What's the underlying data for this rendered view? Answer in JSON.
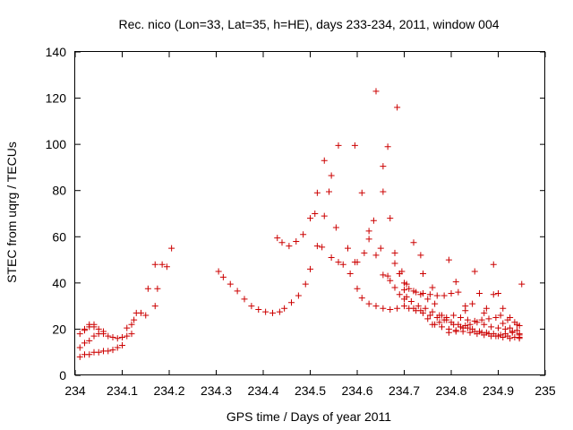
{
  "chart_data": {
    "type": "scatter",
    "title": "Rec. nico (Lon=33, Lat=35, h=HE), days 233-234, 2011, window 004",
    "xlabel": "GPS time / Days of year 2011",
    "ylabel": "STEC from uqrg / TECUs",
    "xlim": [
      234,
      235
    ],
    "ylim": [
      0,
      140
    ],
    "x_ticks": [
      "234",
      "234.1",
      "234.2",
      "234.3",
      "234.4",
      "234.5",
      "234.6",
      "234.7",
      "234.8",
      "234.9",
      "235"
    ],
    "y_ticks": [
      "0",
      "20",
      "40",
      "60",
      "80",
      "100",
      "120",
      "140"
    ],
    "grid": false,
    "legend": "none",
    "marker": "plus",
    "marker_color": "#cc0000",
    "points": [
      [
        234.01,
        8
      ],
      [
        234.02,
        9
      ],
      [
        234.03,
        9
      ],
      [
        234.04,
        10
      ],
      [
        234.05,
        10
      ],
      [
        234.06,
        10.5
      ],
      [
        234.07,
        10.5
      ],
      [
        234.08,
        11
      ],
      [
        234.09,
        12
      ],
      [
        234.1,
        13
      ],
      [
        234.01,
        12
      ],
      [
        234.02,
        14
      ],
      [
        234.03,
        15
      ],
      [
        234.04,
        17
      ],
      [
        234.05,
        18
      ],
      [
        234.06,
        19
      ],
      [
        234.07,
        17
      ],
      [
        234.08,
        16.5
      ],
      [
        234.09,
        16
      ],
      [
        234.1,
        16.5
      ],
      [
        234.11,
        17
      ],
      [
        234.12,
        18
      ],
      [
        234.01,
        18
      ],
      [
        234.02,
        20
      ],
      [
        234.03,
        21
      ],
      [
        234.04,
        22
      ],
      [
        234.05,
        20
      ],
      [
        234.06,
        18
      ],
      [
        234.02,
        19.5
      ],
      [
        234.03,
        22
      ],
      [
        234.04,
        21
      ],
      [
        234.11,
        20.5
      ],
      [
        234.12,
        22
      ],
      [
        234.125,
        24
      ],
      [
        234.13,
        27
      ],
      [
        234.14,
        27
      ],
      [
        234.15,
        26
      ],
      [
        234.155,
        37.5
      ],
      [
        234.17,
        30
      ],
      [
        234.175,
        37.5
      ],
      [
        234.185,
        48
      ],
      [
        234.17,
        48
      ],
      [
        234.195,
        47
      ],
      [
        234.205,
        55
      ],
      [
        234.305,
        45
      ],
      [
        234.315,
        42.5
      ],
      [
        234.33,
        39.5
      ],
      [
        234.345,
        36.5
      ],
      [
        234.36,
        33
      ],
      [
        234.375,
        30
      ],
      [
        234.39,
        28.5
      ],
      [
        234.405,
        27.5
      ],
      [
        234.42,
        27
      ],
      [
        234.435,
        27.5
      ],
      [
        234.445,
        29
      ],
      [
        234.46,
        31.5
      ],
      [
        234.475,
        34.5
      ],
      [
        234.49,
        39.5
      ],
      [
        234.5,
        46
      ],
      [
        234.43,
        59.5
      ],
      [
        234.44,
        57.5
      ],
      [
        234.455,
        56
      ],
      [
        234.47,
        58
      ],
      [
        234.485,
        61
      ],
      [
        234.5,
        68
      ],
      [
        234.515,
        79
      ],
      [
        234.53,
        93
      ],
      [
        234.545,
        86.5
      ],
      [
        234.56,
        99.5
      ],
      [
        234.595,
        99.5
      ],
      [
        234.61,
        79
      ],
      [
        234.625,
        62.5
      ],
      [
        234.635,
        67
      ],
      [
        234.64,
        123
      ],
      [
        234.655,
        90.5
      ],
      [
        234.665,
        99
      ],
      [
        234.685,
        116
      ],
      [
        234.69,
        44
      ],
      [
        234.7,
        37
      ],
      [
        234.705,
        34
      ],
      [
        234.72,
        57.5
      ],
      [
        234.735,
        52
      ],
      [
        234.74,
        44
      ],
      [
        234.76,
        38
      ],
      [
        234.51,
        70
      ],
      [
        234.515,
        56
      ],
      [
        234.525,
        55.5
      ],
      [
        234.53,
        69
      ],
      [
        234.54,
        79.5
      ],
      [
        234.545,
        51
      ],
      [
        234.555,
        64
      ],
      [
        234.56,
        49
      ],
      [
        234.57,
        48
      ],
      [
        234.58,
        55
      ],
      [
        234.585,
        44
      ],
      [
        234.595,
        49
      ],
      [
        234.6,
        37.5
      ],
      [
        234.61,
        33.5
      ],
      [
        234.625,
        31
      ],
      [
        234.64,
        30
      ],
      [
        234.655,
        29
      ],
      [
        234.67,
        28.5
      ],
      [
        234.685,
        29
      ],
      [
        234.7,
        30
      ],
      [
        234.71,
        29
      ],
      [
        234.725,
        28
      ],
      [
        234.74,
        27
      ],
      [
        234.755,
        26
      ],
      [
        234.77,
        25
      ],
      [
        234.785,
        24
      ],
      [
        234.8,
        23
      ],
      [
        234.815,
        22
      ],
      [
        234.83,
        21.5
      ],
      [
        234.845,
        20
      ],
      [
        234.86,
        19
      ],
      [
        234.875,
        18.5
      ],
      [
        234.89,
        18
      ],
      [
        234.905,
        17.5
      ],
      [
        234.92,
        17
      ],
      [
        234.935,
        16.5
      ],
      [
        234.945,
        16.5
      ],
      [
        234.6,
        49
      ],
      [
        234.615,
        53
      ],
      [
        234.625,
        59
      ],
      [
        234.64,
        52
      ],
      [
        234.65,
        55
      ],
      [
        234.655,
        43.5
      ],
      [
        234.665,
        43
      ],
      [
        234.67,
        41
      ],
      [
        234.68,
        38
      ],
      [
        234.69,
        35
      ],
      [
        234.7,
        33
      ],
      [
        234.715,
        32
      ],
      [
        234.73,
        30
      ],
      [
        234.745,
        29
      ],
      [
        234.76,
        27.5
      ],
      [
        234.775,
        26
      ],
      [
        234.79,
        24
      ],
      [
        234.805,
        22
      ],
      [
        234.82,
        21
      ],
      [
        234.835,
        20.5
      ],
      [
        234.85,
        19
      ],
      [
        234.865,
        18.5
      ],
      [
        234.88,
        18
      ],
      [
        234.895,
        17
      ],
      [
        234.91,
        16.5
      ],
      [
        234.925,
        16
      ],
      [
        234.945,
        16
      ],
      [
        234.655,
        79.5
      ],
      [
        234.67,
        68
      ],
      [
        234.68,
        53
      ],
      [
        234.69,
        44
      ],
      [
        234.7,
        40
      ],
      [
        234.71,
        37.5
      ],
      [
        234.725,
        36
      ],
      [
        234.74,
        35.5
      ],
      [
        234.755,
        35
      ],
      [
        234.77,
        34.5
      ],
      [
        234.785,
        34.5
      ],
      [
        234.8,
        35.5
      ],
      [
        234.815,
        36
      ],
      [
        234.83,
        30
      ],
      [
        234.845,
        31
      ],
      [
        234.86,
        35.5
      ],
      [
        234.875,
        29
      ],
      [
        234.89,
        35
      ],
      [
        234.9,
        35.5
      ],
      [
        234.91,
        29
      ],
      [
        234.925,
        25
      ],
      [
        234.94,
        22
      ],
      [
        234.95,
        39.5
      ],
      [
        234.68,
        48.5
      ],
      [
        234.695,
        45
      ],
      [
        234.705,
        39.5
      ],
      [
        234.72,
        36.5
      ],
      [
        234.735,
        35
      ],
      [
        234.75,
        33
      ],
      [
        234.765,
        31
      ],
      [
        234.78,
        26
      ],
      [
        234.795,
        50
      ],
      [
        234.81,
        40.5
      ],
      [
        234.83,
        28
      ],
      [
        234.85,
        45
      ],
      [
        234.87,
        27
      ],
      [
        234.89,
        48
      ],
      [
        234.905,
        26
      ],
      [
        234.92,
        24
      ],
      [
        234.935,
        23
      ],
      [
        234.945,
        21.5
      ],
      [
        234.72,
        29
      ],
      [
        234.735,
        28
      ],
      [
        234.75,
        24.5
      ],
      [
        234.765,
        22
      ],
      [
        234.78,
        21
      ],
      [
        234.795,
        20
      ],
      [
        234.81,
        19.5
      ],
      [
        234.825,
        19
      ],
      [
        234.84,
        18.5
      ],
      [
        234.855,
        18
      ],
      [
        234.87,
        17.5
      ],
      [
        234.885,
        17
      ],
      [
        234.9,
        17
      ],
      [
        234.915,
        18
      ],
      [
        234.93,
        19
      ],
      [
        234.945,
        18
      ],
      [
        234.76,
        22
      ],
      [
        234.775,
        23
      ],
      [
        234.79,
        25
      ],
      [
        234.805,
        26
      ],
      [
        234.82,
        25
      ],
      [
        234.835,
        24
      ],
      [
        234.85,
        23.5
      ],
      [
        234.865,
        24
      ],
      [
        234.88,
        24.5
      ],
      [
        234.895,
        25
      ],
      [
        234.91,
        22.5
      ],
      [
        234.925,
        20.5
      ],
      [
        234.94,
        19.5
      ],
      [
        234.795,
        18.5
      ],
      [
        234.81,
        19
      ],
      [
        234.825,
        20.5
      ],
      [
        234.84,
        22
      ],
      [
        234.855,
        23
      ],
      [
        234.87,
        22
      ],
      [
        234.885,
        21
      ],
      [
        234.9,
        20.5
      ],
      [
        234.915,
        20
      ],
      [
        234.93,
        18.5
      ],
      [
        234.945,
        17.5
      ]
    ]
  }
}
